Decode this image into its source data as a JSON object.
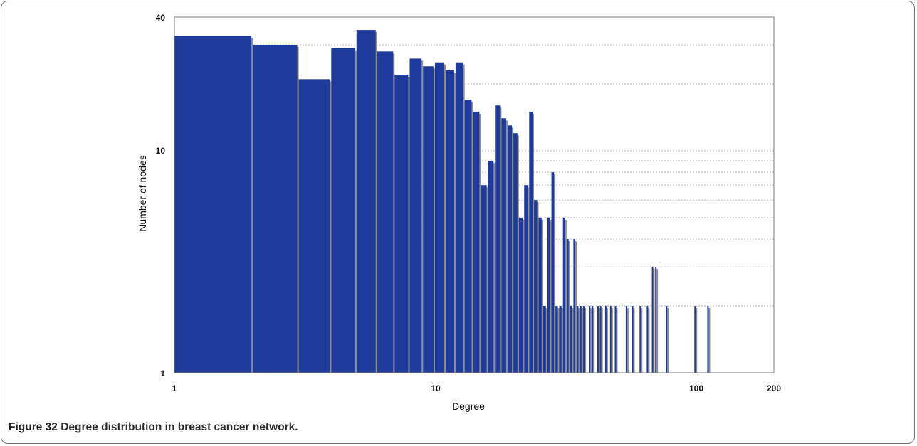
{
  "caption": {
    "label": "Figure 32",
    "text": "Degree distribution in breast cancer network."
  },
  "colors": {
    "bar": "#1e3a9a",
    "bar_shadow": "#8e8e8e",
    "grid": "#bdbdbd",
    "axis": "#7a7a7a"
  },
  "chart_data": {
    "type": "bar",
    "title": "",
    "xlabel": "Degree",
    "ylabel": "Number of nodes",
    "xscale": "log",
    "yscale": "log",
    "xlim": [
      1,
      200
    ],
    "ylim": [
      1,
      40
    ],
    "x_ticks": [
      "1",
      "10",
      "100",
      "200"
    ],
    "y_ticks": [
      "1",
      "10",
      "40"
    ],
    "grid": "horizontal dashed",
    "legend": "none",
    "x": [
      1,
      2,
      3,
      4,
      5,
      6,
      7,
      8,
      9,
      10,
      11,
      12,
      13,
      14,
      15,
      16,
      17,
      18,
      19,
      20,
      21,
      22,
      23,
      24,
      25,
      26,
      27,
      28,
      29,
      30,
      31,
      32,
      33,
      34,
      35,
      36,
      37,
      39,
      40,
      42,
      43,
      45,
      47,
      49,
      54,
      57,
      61,
      65,
      68,
      70,
      77,
      99,
      111
    ],
    "values": [
      33,
      30,
      21,
      29,
      35,
      28,
      22,
      26,
      24,
      25,
      23,
      25,
      17,
      15,
      7,
      9,
      16,
      14,
      13,
      12,
      5,
      7,
      15,
      6,
      5,
      2,
      5,
      8,
      2,
      2,
      5,
      4,
      2,
      4,
      2,
      2,
      2,
      2,
      2,
      2,
      2,
      2,
      2,
      2,
      2,
      2,
      2,
      2,
      3,
      3,
      2,
      2,
      2
    ]
  }
}
